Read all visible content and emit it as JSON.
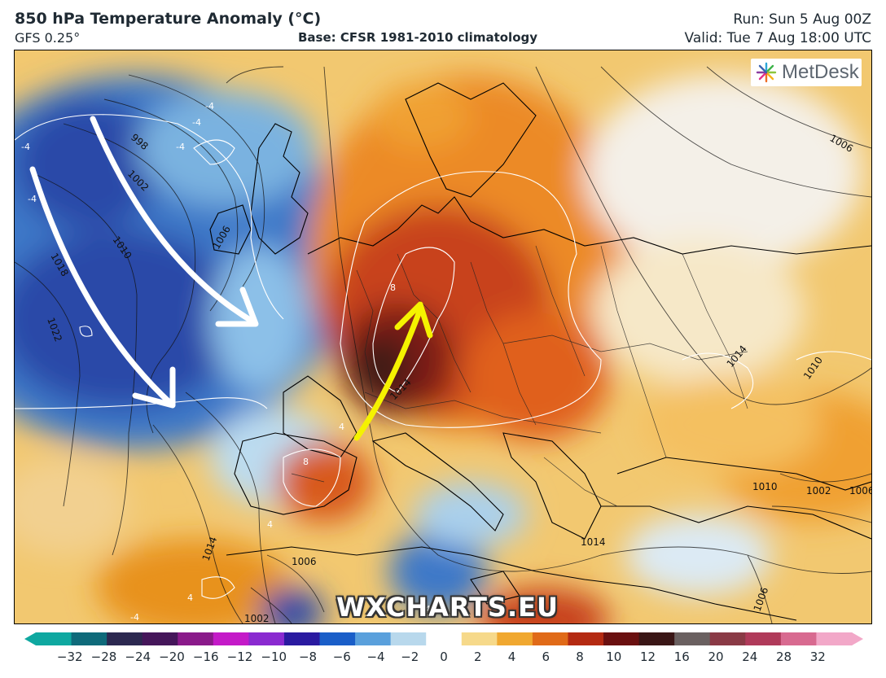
{
  "header": {
    "title": "850 hPa Temperature Anomaly (°C)",
    "model": "GFS 0.25°",
    "base": "Base: CFSR 1981-2010 climatology",
    "run": "Run: Sun 5 Aug 00Z",
    "valid": "Valid: Tue 7 Aug 18:00 UTC"
  },
  "logo": {
    "text": "MetDesk",
    "icon": "metdesk-burst-icon"
  },
  "watermark": "WXCHARTS.EU",
  "map": {
    "isobar_labels": [
      "998",
      "1002",
      "1010",
      "1018",
      "1022",
      "1006",
      "1006",
      "1014",
      "1010",
      "1014",
      "1010",
      "1002",
      "1006",
      "1014",
      "1014",
      "1006",
      "1006",
      "1002"
    ],
    "anomaly_labels": [
      "-4",
      "-4",
      "-4",
      "-4",
      "-4",
      "8",
      "8",
      "4",
      "4",
      "-4",
      "4",
      "-4"
    ],
    "arrows": [
      {
        "color": "#ffffff",
        "direction": "south-east"
      },
      {
        "color": "#ffffff",
        "direction": "south-east"
      },
      {
        "color": "#f5f200",
        "direction": "north-east"
      }
    ]
  },
  "colorbar": {
    "ticks": [
      "−32",
      "−28",
      "−24",
      "−20",
      "−16",
      "−12",
      "−10",
      "−8",
      "−6",
      "−4",
      "−2",
      "0",
      "2",
      "4",
      "6",
      "8",
      "10",
      "12",
      "16",
      "20",
      "24",
      "28",
      "32"
    ],
    "colors": [
      "#0fa8a0",
      "#0f6a7a",
      "#2c2850",
      "#45165a",
      "#8a1a8a",
      "#c41ac8",
      "#8a2ad0",
      "#2a1aa0",
      "#1a5ec8",
      "#5aa0dc",
      "#b8d8ec",
      "#ffffff",
      "#f6d98a",
      "#f0a830",
      "#e06a18",
      "#b42a12",
      "#6a1010",
      "#3a1616",
      "#6a6060",
      "#8a3a46",
      "#b03a5a",
      "#d86a90",
      "#f2a8c8"
    ]
  }
}
